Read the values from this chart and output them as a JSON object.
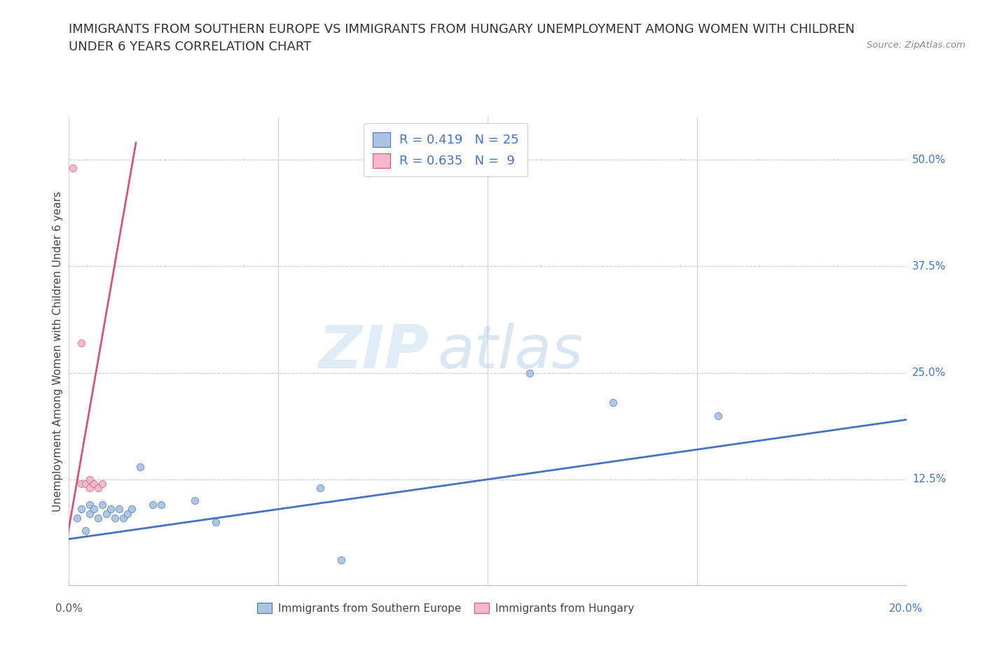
{
  "title_line1": "IMMIGRANTS FROM SOUTHERN EUROPE VS IMMIGRANTS FROM HUNGARY UNEMPLOYMENT AMONG WOMEN WITH CHILDREN",
  "title_line2": "UNDER 6 YEARS CORRELATION CHART",
  "source_text": "Source: ZipAtlas.com",
  "ylabel": "Unemployment Among Women with Children Under 6 years",
  "legend_bottom": [
    "Immigrants from Southern Europe",
    "Immigrants from Hungary"
  ],
  "r_blue": 0.419,
  "n_blue": 25,
  "r_pink": 0.635,
  "n_pink": 9,
  "xlim": [
    0.0,
    0.2
  ],
  "ylim": [
    0.0,
    0.55
  ],
  "xticks": [
    0.0,
    0.05,
    0.1,
    0.15,
    0.2
  ],
  "ytick_positions": [
    0.0,
    0.125,
    0.25,
    0.375,
    0.5
  ],
  "yticklabels_right": [
    "",
    "12.5%",
    "25.0%",
    "37.5%",
    "50.0%"
  ],
  "watermark_zip": "ZIP",
  "watermark_atlas": "atlas",
  "blue_scatter_x": [
    0.002,
    0.003,
    0.004,
    0.005,
    0.005,
    0.006,
    0.007,
    0.008,
    0.009,
    0.01,
    0.011,
    0.012,
    0.013,
    0.014,
    0.015,
    0.017,
    0.02,
    0.022,
    0.03,
    0.035,
    0.06,
    0.065,
    0.11,
    0.13,
    0.155
  ],
  "blue_scatter_y": [
    0.08,
    0.09,
    0.065,
    0.095,
    0.085,
    0.09,
    0.08,
    0.095,
    0.085,
    0.09,
    0.08,
    0.09,
    0.08,
    0.085,
    0.09,
    0.14,
    0.095,
    0.095,
    0.1,
    0.075,
    0.115,
    0.03,
    0.25,
    0.215,
    0.2
  ],
  "pink_scatter_x": [
    0.001,
    0.003,
    0.003,
    0.004,
    0.005,
    0.005,
    0.006,
    0.007,
    0.008
  ],
  "pink_scatter_y": [
    0.49,
    0.285,
    0.12,
    0.12,
    0.125,
    0.115,
    0.12,
    0.115,
    0.12
  ],
  "blue_line_x": [
    0.0,
    0.2
  ],
  "blue_line_y": [
    0.055,
    0.195
  ],
  "pink_line_x": [
    -0.001,
    0.016
  ],
  "pink_line_y": [
    0.04,
    0.52
  ],
  "blue_color": "#aac4e2",
  "blue_line_color": "#4472c4",
  "pink_color": "#f5b8c8",
  "pink_line_color": "#d4547a",
  "grid_color": "#cccccc",
  "background_color": "#ffffff",
  "title_fontsize": 13,
  "axis_label_fontsize": 11,
  "legend_fontsize": 13
}
